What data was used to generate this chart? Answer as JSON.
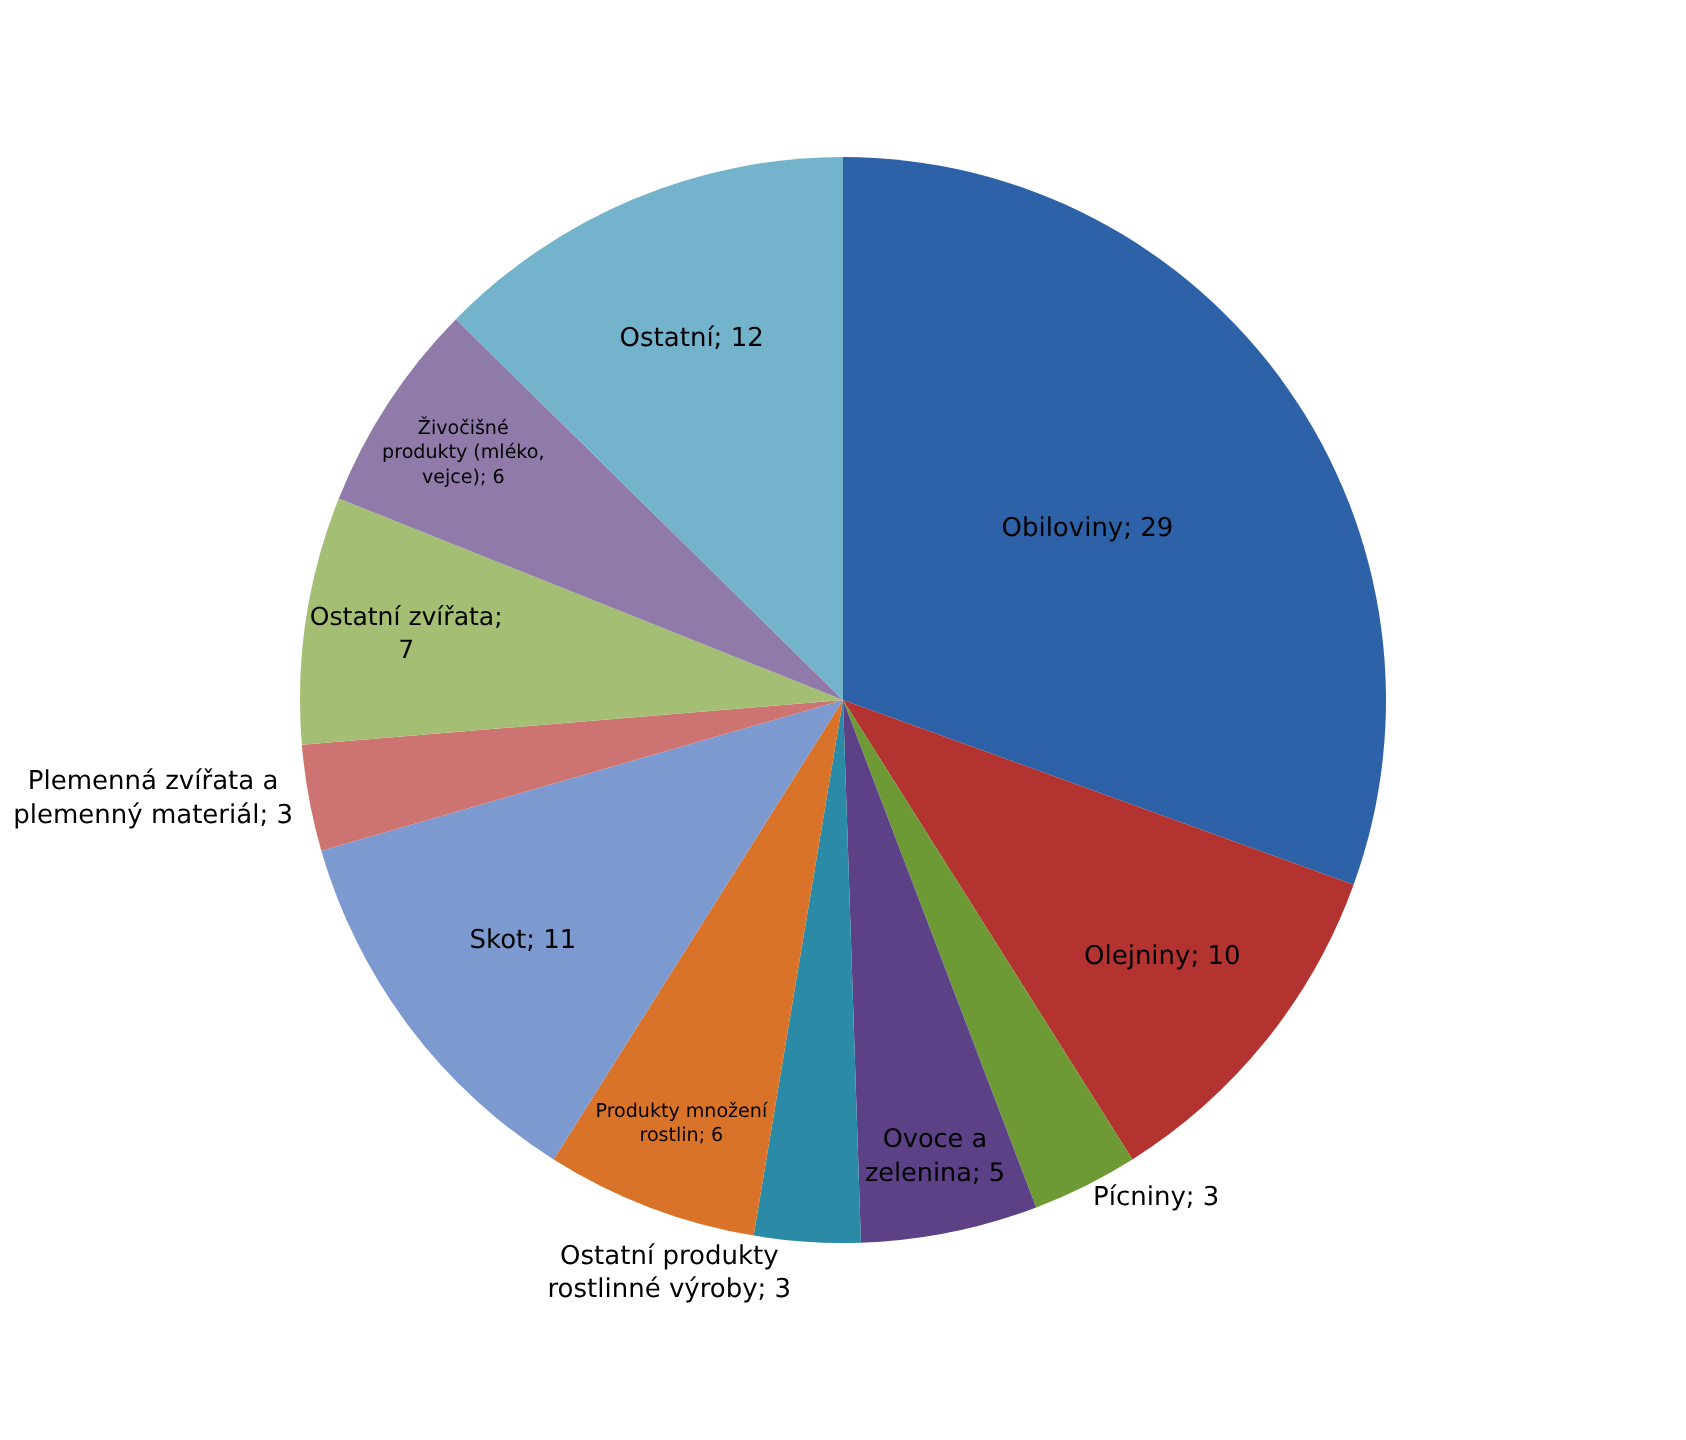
{
  "chart_data": {
    "type": "pie",
    "categories": [
      "Obiloviny; 29",
      "Olejniny; 10",
      "Pícniny; 3",
      "Ovoce a zelenina; 5",
      "Ostatní produkty rostlinné výroby; 3",
      "Produkty množení rostlin; 6",
      "Skot; 11",
      "Plemenná zvířata a plemenný materiál; 3",
      "Ostatní zvířata; 7",
      "Živočišné produkty (mléko, vejce); 6",
      "Ostatní; 12"
    ],
    "values": [
      29,
      10,
      3,
      5,
      3,
      6,
      11,
      3,
      7,
      6,
      12
    ],
    "colors": [
      "#2e62a8",
      "#b33330",
      "#6e9a35",
      "#5d4187",
      "#2b8ba6",
      "#d9732a",
      "#7c9ad0",
      "#cd7372",
      "#a4bf73",
      "#8f7aa9",
      "#73b4cc"
    ],
    "legend": false
  }
}
